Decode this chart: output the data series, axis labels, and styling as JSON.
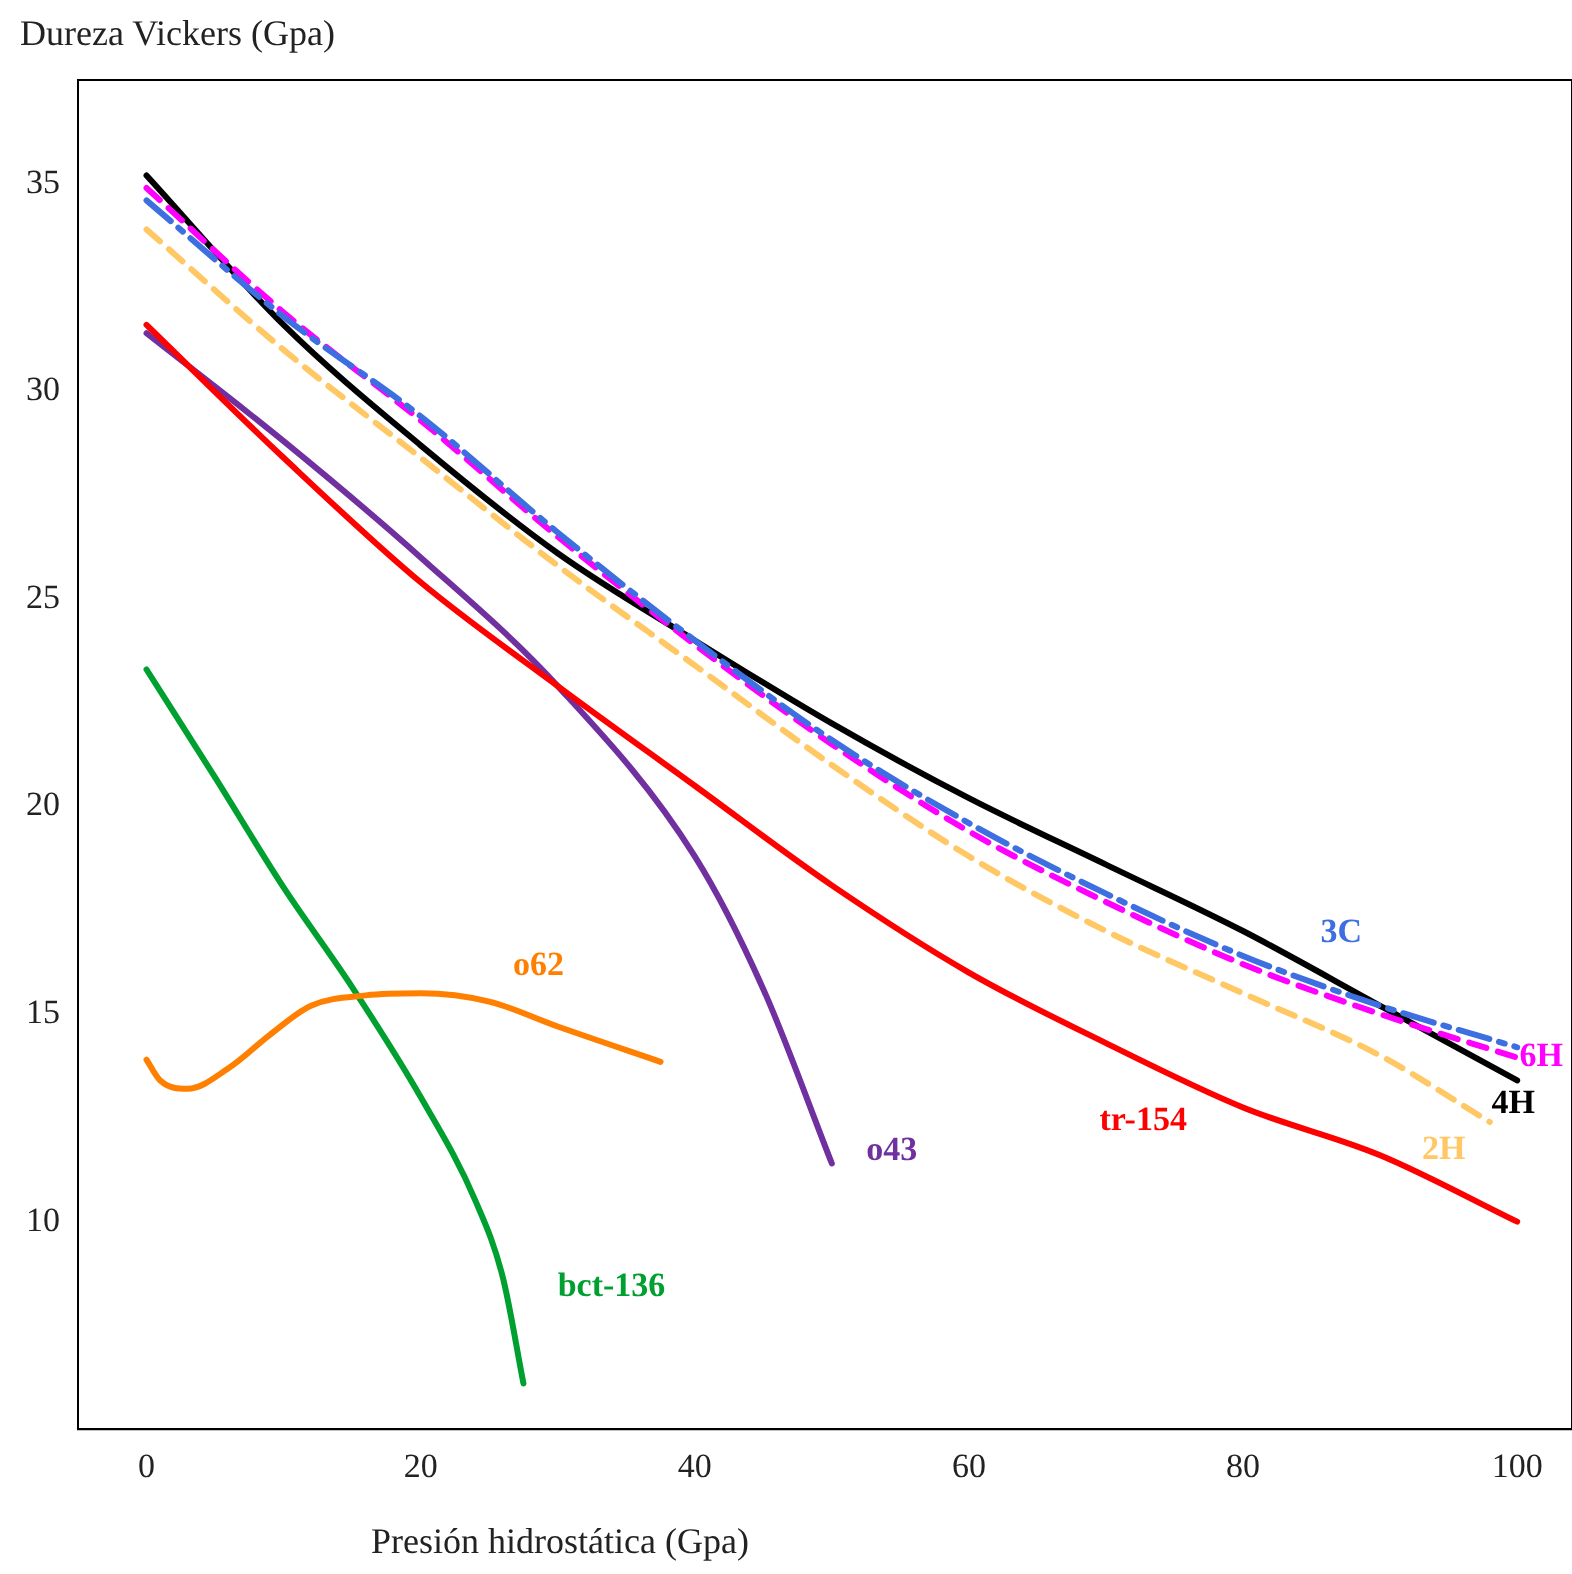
{
  "chart_data": {
    "type": "line",
    "ylabel": "Dureza Vickers (Gpa)",
    "xlabel": "Presión hidrostática (Gpa)",
    "xlim": [
      -5,
      104
    ],
    "ylim": [
      5,
      37.5
    ],
    "xticks": [
      0,
      20,
      40,
      60,
      80,
      100
    ],
    "yticks": [
      10,
      15,
      20,
      25,
      30,
      35
    ],
    "grid": false,
    "legend": false,
    "marker": "none",
    "series": [
      {
        "name": "3C",
        "color": "#3d6fe0",
        "line_style": "dashdot",
        "x": [
          0,
          10,
          20,
          30,
          40,
          50,
          60,
          70,
          80,
          90,
          100
        ],
        "values": [
          34.6,
          31.8,
          29.4,
          26.6,
          24.0,
          21.6,
          19.6,
          17.9,
          16.4,
          15.2,
          14.2
        ]
      },
      {
        "name": "6H",
        "color": "#ff00ff",
        "line_style": "dashed",
        "x": [
          0,
          10,
          20,
          30,
          40,
          50,
          60,
          70,
          80,
          90,
          100
        ],
        "values": [
          34.9,
          31.9,
          29.3,
          26.5,
          23.9,
          21.5,
          19.4,
          17.7,
          16.2,
          15.0,
          13.95
        ]
      },
      {
        "name": "4H",
        "color": "#000000",
        "line_style": "solid",
        "x": [
          0,
          10,
          20,
          30,
          40,
          50,
          60,
          70,
          80,
          90,
          100
        ],
        "values": [
          35.2,
          31.6,
          28.7,
          26.1,
          24.0,
          22.0,
          20.2,
          18.6,
          17.0,
          15.2,
          13.4
        ]
      },
      {
        "name": "2H",
        "color": "#ffc864",
        "line_style": "dashed",
        "x": [
          0,
          10,
          20,
          30,
          40,
          50,
          60,
          70,
          80,
          90,
          98
        ],
        "values": [
          33.9,
          31.0,
          28.4,
          25.8,
          23.4,
          21.0,
          18.8,
          17.0,
          15.5,
          14.0,
          12.4
        ]
      },
      {
        "name": "tr-154",
        "color": "#ff0000",
        "line_style": "solid",
        "x": [
          0,
          10,
          20,
          30,
          40,
          50,
          60,
          70,
          80,
          90,
          100
        ],
        "values": [
          31.6,
          28.4,
          25.4,
          22.9,
          20.5,
          18.1,
          16.0,
          14.3,
          12.75,
          11.6,
          10.0
        ]
      },
      {
        "name": "o43",
        "color": "#7030a0",
        "line_style": "solid",
        "x": [
          0,
          10,
          20,
          30,
          40,
          45,
          50
        ],
        "values": [
          31.4,
          28.8,
          26.0,
          22.9,
          18.8,
          15.6,
          11.4
        ]
      },
      {
        "name": "o62",
        "color": "#ff8000",
        "line_style": "solid",
        "x": [
          0,
          1,
          3,
          6,
          9,
          12,
          16,
          20,
          25,
          30,
          37.5
        ],
        "values": [
          13.9,
          13.4,
          13.2,
          13.7,
          14.5,
          15.2,
          15.45,
          15.5,
          15.3,
          14.7,
          13.85
        ]
      },
      {
        "name": "bct-136",
        "color": "#00a030",
        "line_style": "solid",
        "x": [
          0,
          5,
          10,
          15,
          20,
          24,
          26,
          27.5
        ],
        "values": [
          23.3,
          20.7,
          18.05,
          15.65,
          13.0,
          10.5,
          8.65,
          6.1
        ]
      }
    ]
  }
}
